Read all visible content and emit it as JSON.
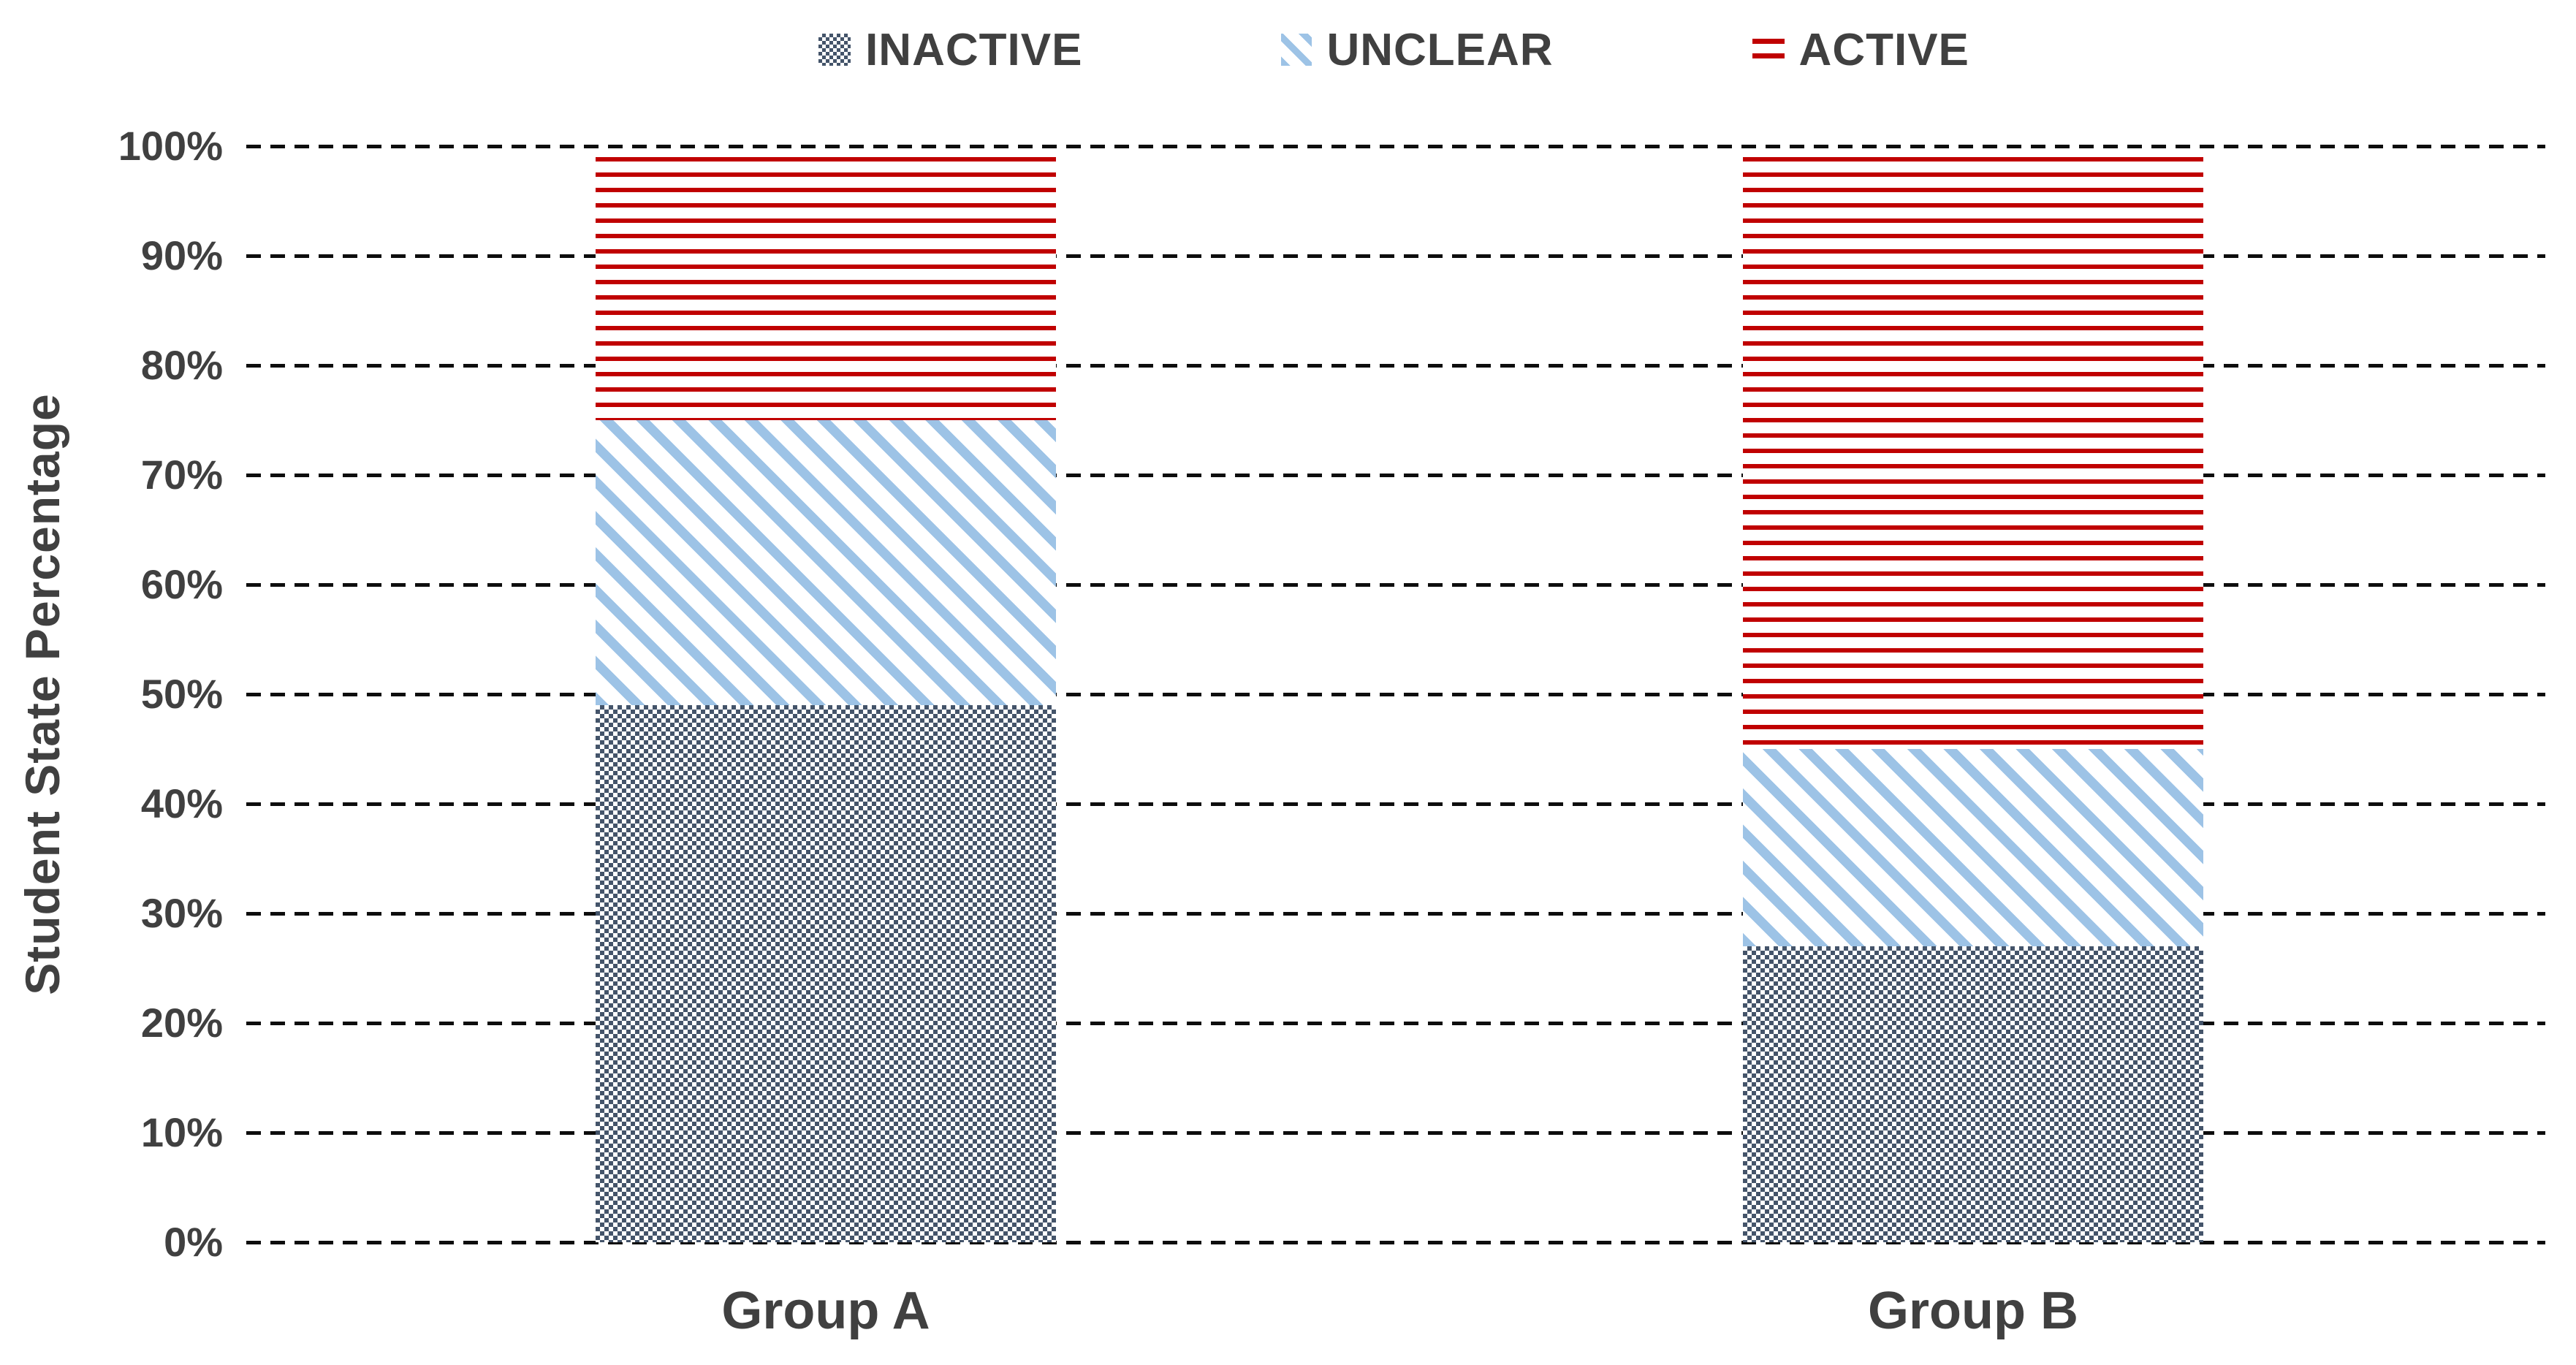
{
  "chart_data": {
    "type": "bar",
    "stacked": true,
    "orientation": "vertical",
    "categories": [
      "Group A",
      "Group B"
    ],
    "series": [
      {
        "name": "INACTIVE",
        "values": [
          49,
          27
        ],
        "pattern": "checkerboard",
        "color": "#44546A"
      },
      {
        "name": "UNCLEAR",
        "values": [
          26,
          18
        ],
        "pattern": "diagonal-stripes",
        "color": "#9DC3E6"
      },
      {
        "name": "ACTIVE",
        "values": [
          24,
          54
        ],
        "pattern": "horizontal-lines",
        "color": "#C00000"
      }
    ],
    "ylabel": "Student State Percentage",
    "xlabel": "",
    "ylim": [
      0,
      100
    ],
    "ytick_labels": [
      "100%",
      "90%",
      "80%",
      "70%",
      "60%",
      "50%",
      "40%",
      "30%",
      "20%",
      "10%",
      "0%"
    ],
    "grid": true,
    "gridline_style": "dashed",
    "legend_position": "top"
  },
  "legend": {
    "items": [
      {
        "label": "INACTIVE"
      },
      {
        "label": "UNCLEAR"
      },
      {
        "label": "ACTIVE"
      }
    ]
  },
  "colors": {
    "inactive": "#44546A",
    "unclear": "#9DC3E6",
    "active": "#C00000",
    "text": "#404040",
    "gridline": "#0d0d0d",
    "background": "#ffffff"
  }
}
